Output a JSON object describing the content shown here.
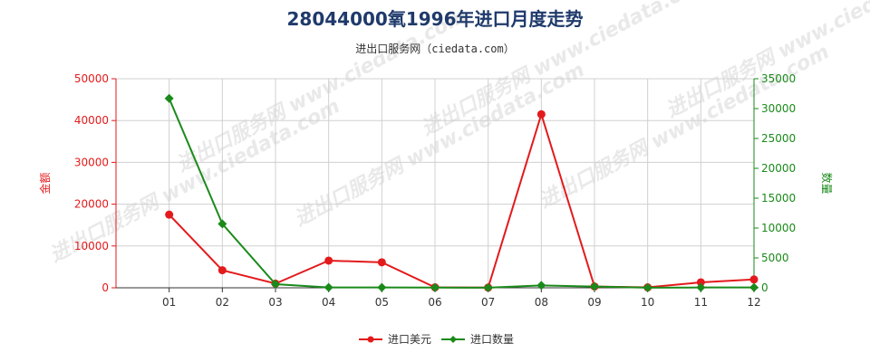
{
  "chart_data": {
    "type": "line",
    "title": "28044000氧1996年进口月度走势",
    "subtitle": "进出口服务网（ciedata.com）",
    "watermark": "进出口服务网 www.ciedata.com",
    "categories": [
      "01",
      "02",
      "03",
      "04",
      "05",
      "06",
      "07",
      "08",
      "09",
      "10",
      "11",
      "12"
    ],
    "y_left": {
      "label": "金额",
      "ylim": [
        0,
        50000
      ],
      "ticks": [
        0,
        10000,
        20000,
        30000,
        40000,
        50000
      ],
      "color": "#e31a1c"
    },
    "y_right": {
      "label": "数量",
      "ylim": [
        0,
        35000
      ],
      "ticks": [
        0,
        5000,
        10000,
        15000,
        20000,
        25000,
        30000,
        35000
      ],
      "color": "#1a8a1a"
    },
    "grid": true,
    "legend_position": "bottom",
    "series": [
      {
        "name": "进口美元",
        "axis": "left",
        "color": "#e31a1c",
        "marker": "circle",
        "values": [
          17500,
          4200,
          1000,
          6500,
          6100,
          100,
          50,
          41500,
          300,
          100,
          1300,
          2000
        ]
      },
      {
        "name": "进口数量",
        "axis": "right",
        "color": "#1a8a1a",
        "marker": "diamond",
        "values": [
          31700,
          10700,
          600,
          50,
          50,
          30,
          10,
          400,
          200,
          20,
          50,
          50
        ]
      }
    ]
  }
}
